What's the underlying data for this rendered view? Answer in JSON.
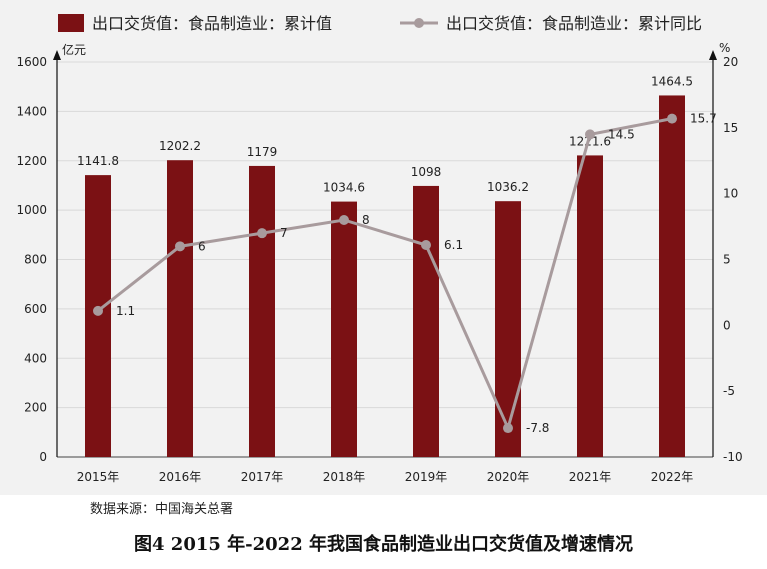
{
  "chart_data": {
    "type": "bar",
    "categories": [
      "2015年",
      "2016年",
      "2017年",
      "2018年",
      "2019年",
      "2020年",
      "2021年",
      "2022年"
    ],
    "series": [
      {
        "name": "出口交货值：食品制造业：累计值",
        "kind": "bar",
        "axis": "left",
        "color": "#7b1114",
        "values": [
          1141.8,
          1202.2,
          1179,
          1034.6,
          1098,
          1036.2,
          1221.6,
          1464.5
        ]
      },
      {
        "name": "出口交货值：食品制造业：累计同比",
        "kind": "line",
        "axis": "right",
        "color": "#a89b9d",
        "values": [
          1.1,
          6,
          7,
          8,
          6.1,
          -7.8,
          14.5,
          15.7
        ]
      }
    ],
    "y_left": {
      "unit": "亿元",
      "ylim": [
        0,
        1600
      ],
      "ticks": [
        0,
        200,
        400,
        600,
        800,
        1000,
        1200,
        1400,
        1600
      ]
    },
    "y_right": {
      "unit": "%",
      "ylim": [
        -10,
        20
      ],
      "ticks": [
        -10,
        -5,
        0,
        5,
        10,
        15,
        20
      ]
    },
    "grid": true,
    "legend_position": "top"
  },
  "source_text": "数据来源：中国海关总署",
  "caption": "图4 2015 年-2022 年我国食品制造业出口交货值及增速情况"
}
